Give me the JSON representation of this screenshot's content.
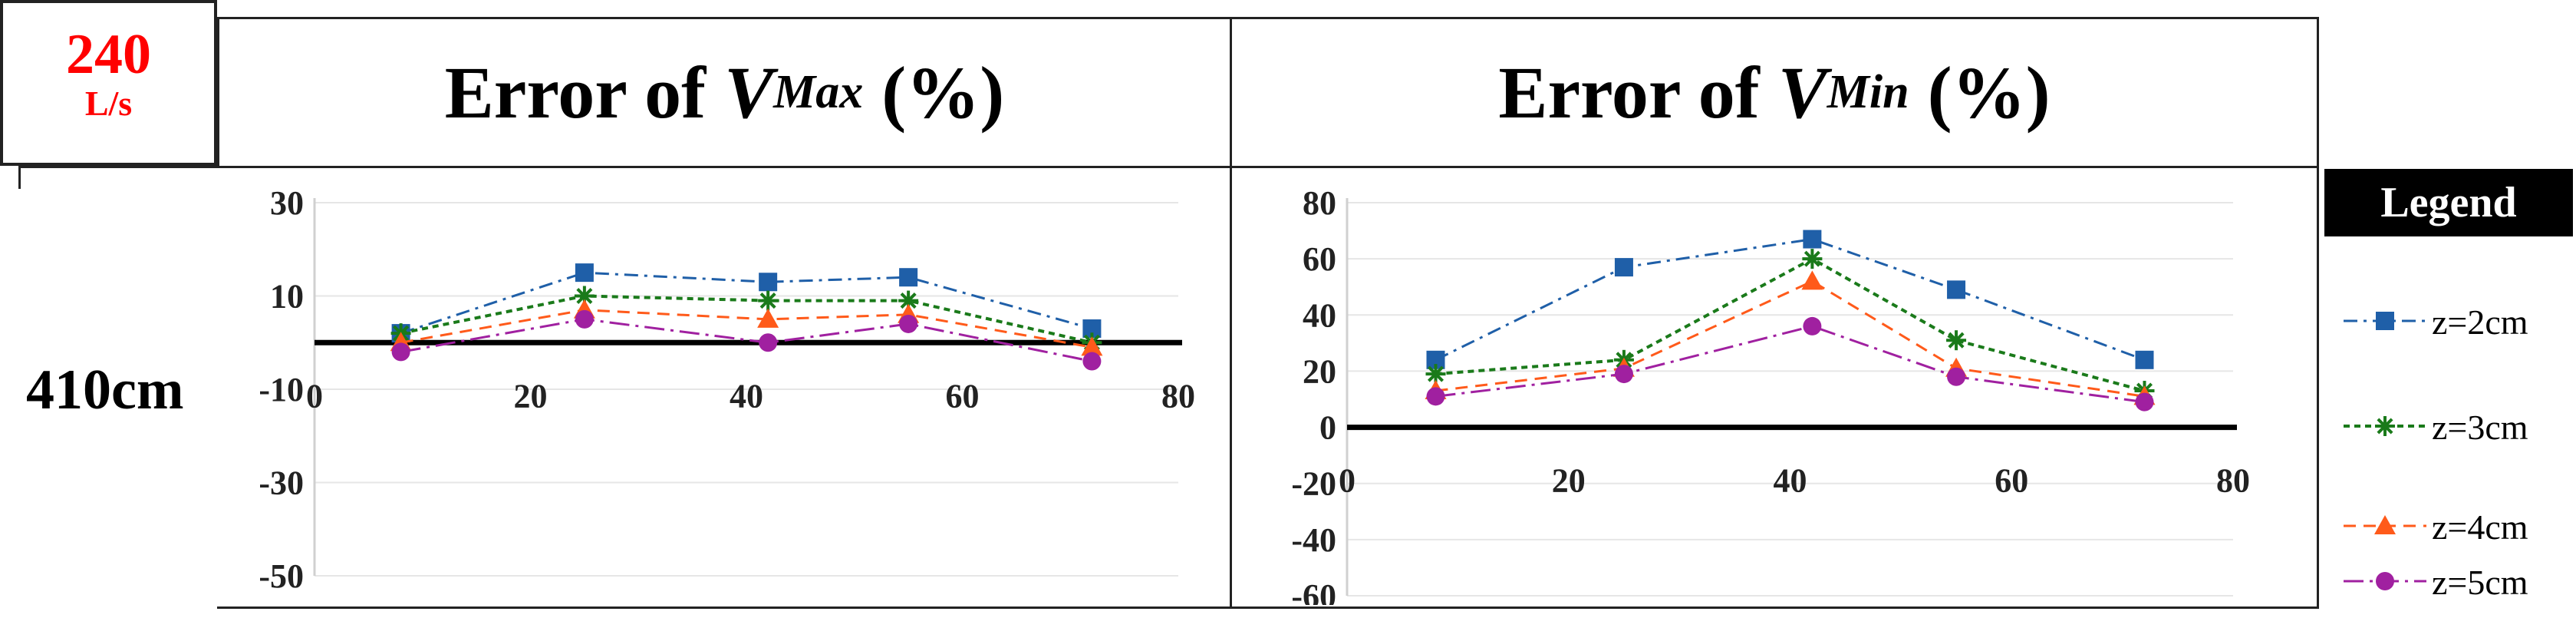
{
  "header": {
    "flow_value": "240",
    "flow_unit": "L/s",
    "row_label": "410cm",
    "vmax_title_pre": "Error of ",
    "vmax_var": "V",
    "vmax_sub": "Max",
    "vmax_title_post": " (%)",
    "vmin_title_pre": "Error of ",
    "vmin_var": "V",
    "vmin_sub": "Min",
    "vmin_title_post": " (%)"
  },
  "legend": {
    "title": "Legend",
    "items": [
      {
        "label": "z=2cm",
        "color": "#1f5fa8",
        "marker": "square"
      },
      {
        "label": "z=3cm",
        "color": "#1a7a1a",
        "marker": "star"
      },
      {
        "label": "z=4cm",
        "color": "#ff5a1a",
        "marker": "triangle"
      },
      {
        "label": "z=5cm",
        "color": "#a020a0",
        "marker": "circle"
      }
    ]
  },
  "chart_data": [
    {
      "type": "line",
      "title": "",
      "xlim": [
        0,
        80
      ],
      "ylim": [
        -50,
        30
      ],
      "x_ticks": [
        0,
        20,
        40,
        60,
        80
      ],
      "y_ticks": [
        30,
        10,
        -10,
        -30,
        -50
      ],
      "x": [
        8,
        25,
        42,
        55,
        72
      ],
      "series": [
        {
          "name": "z=2cm",
          "values": [
            2,
            15,
            13,
            14,
            3
          ]
        },
        {
          "name": "z=3cm",
          "values": [
            2,
            10,
            9,
            9,
            0
          ]
        },
        {
          "name": "z=4cm",
          "values": [
            0,
            7,
            5,
            6,
            -1
          ]
        },
        {
          "name": "z=5cm",
          "values": [
            -2,
            5,
            0,
            4,
            -4
          ]
        }
      ]
    },
    {
      "type": "line",
      "title": "",
      "xlim": [
        0,
        80
      ],
      "ylim": [
        -60,
        80
      ],
      "x_ticks": [
        0,
        20,
        40,
        60,
        80
      ],
      "y_ticks": [
        80,
        60,
        40,
        20,
        0,
        -20,
        -40,
        -60
      ],
      "x": [
        8,
        25,
        42,
        55,
        72
      ],
      "series": [
        {
          "name": "z=2cm",
          "values": [
            24,
            57,
            67,
            49,
            24
          ]
        },
        {
          "name": "z=3cm",
          "values": [
            19,
            24,
            60,
            31,
            13
          ]
        },
        {
          "name": "z=4cm",
          "values": [
            13,
            21,
            52,
            21,
            11
          ]
        },
        {
          "name": "z=5cm",
          "values": [
            11,
            19,
            36,
            18,
            9
          ]
        }
      ]
    }
  ]
}
